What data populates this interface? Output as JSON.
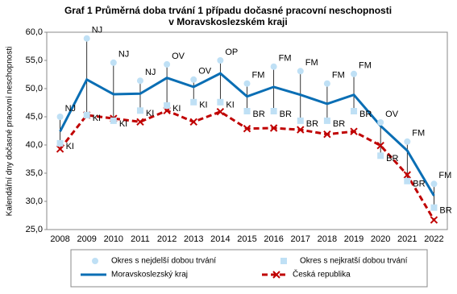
{
  "chart_data": {
    "type": "line",
    "title": [
      "Graf 1 Průměrná doba trvání 1 případu dočasné pracovní neschopnosti",
      "v Moravskoslezském  kraji"
    ],
    "y_label": "Kalendářní dny dočasné pracovní neschopnosti",
    "categories": [
      "2008",
      "2009",
      "2010",
      "2011",
      "2012",
      "2013",
      "2014",
      "2015",
      "2016",
      "2017",
      "2018",
      "2019",
      "2020",
      "2021",
      "2022"
    ],
    "ylim": [
      25,
      60
    ],
    "yticks": [
      {
        "value": 25,
        "label": "25,0"
      },
      {
        "value": 30,
        "label": "30,0"
      },
      {
        "value": 35,
        "label": "35,0"
      },
      {
        "value": 40,
        "label": "40,0"
      },
      {
        "value": 45,
        "label": "45,0"
      },
      {
        "value": 50,
        "label": "50,0"
      },
      {
        "value": 55,
        "label": "55,0"
      },
      {
        "value": 60,
        "label": "60,0"
      }
    ],
    "grid": false,
    "series": [
      {
        "name": "Okres s nejdelší dobou trvání",
        "marker": "circle",
        "color": "#bfe0f5",
        "values": [
          45.0,
          58.9,
          54.6,
          51.4,
          54.3,
          51.6,
          55.0,
          50.9,
          53.9,
          53.1,
          50.9,
          52.6,
          44.0,
          40.6,
          33.1
        ],
        "labels": [
          "NJ",
          "NJ",
          "NJ",
          "NJ",
          "OV",
          "OV",
          "OP",
          "FM",
          "FM",
          "FM",
          "FM",
          "FM",
          "OV",
          "FM",
          "FM"
        ]
      },
      {
        "name": "Okres s nejkratší dobou trvání",
        "marker": "square",
        "color": "#bfe0f5",
        "values": [
          40.3,
          45.3,
          44.3,
          46.1,
          47.0,
          47.6,
          47.6,
          46.0,
          46.0,
          44.3,
          44.3,
          46.0,
          38.1,
          33.6,
          28.9
        ],
        "labels": [
          "KI",
          "KI",
          "KI",
          "KI",
          "KI",
          "KI",
          "KI",
          "BR",
          "BR",
          "BR",
          "BR",
          "BR",
          "BR",
          "BR",
          "BR"
        ]
      },
      {
        "name": "Moravskoslezský kraj",
        "marker": "line",
        "color": "#0a6eb4",
        "values": [
          42.4,
          51.6,
          49.0,
          49.1,
          51.9,
          50.3,
          52.7,
          48.6,
          50.3,
          48.9,
          47.3,
          48.9,
          43.4,
          39.0,
          31.0
        ]
      },
      {
        "name": "Česká republika",
        "marker": "dashed-x",
        "color": "#c00000",
        "values": [
          39.3,
          45.3,
          44.7,
          44.1,
          46.1,
          44.1,
          45.9,
          42.9,
          43.0,
          42.7,
          41.9,
          42.4,
          39.9,
          34.7,
          26.7
        ]
      }
    ]
  }
}
